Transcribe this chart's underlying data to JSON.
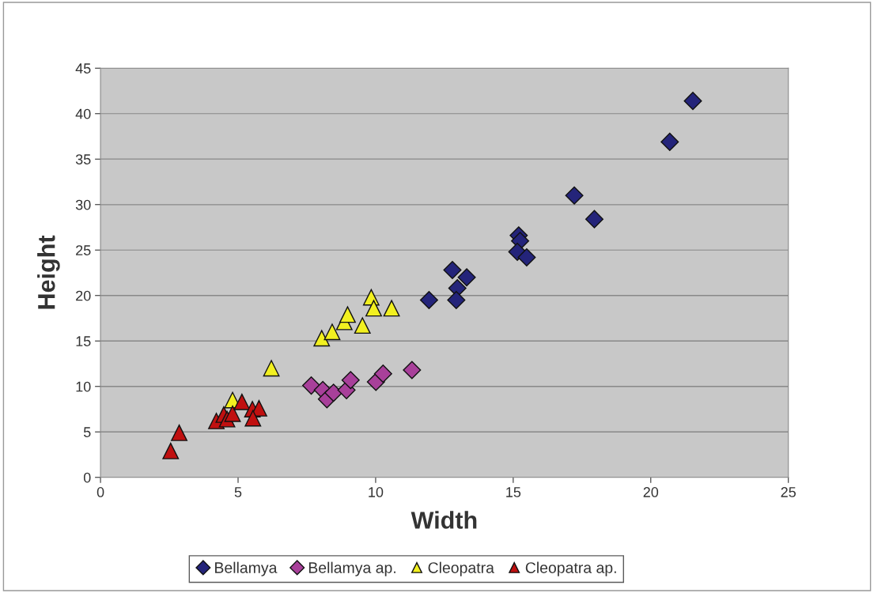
{
  "chart_data": {
    "type": "scatter",
    "xlabel": "Width",
    "ylabel": "Height",
    "xlim": [
      0,
      25
    ],
    "xticks": [
      0,
      5,
      10,
      15,
      20,
      25
    ],
    "ylim": [
      0,
      45
    ],
    "yticks": [
      0,
      5,
      10,
      15,
      20,
      25,
      30,
      35,
      40,
      45
    ],
    "grid": "y",
    "legend": "bottom",
    "series": [
      {
        "name": "Bellamya",
        "color": "#24247a",
        "marker": "diamond",
        "x": [
          11.94,
          12.79,
          13.31,
          12.97,
          12.93,
          15.2,
          15.25,
          15.15,
          15.49,
          21.53,
          20.69,
          17.22,
          17.95
        ],
        "values": [
          19.5,
          22.8,
          22.0,
          20.8,
          19.5,
          26.6,
          26.0,
          24.8,
          24.2,
          41.4,
          36.9,
          31.0,
          28.4
        ]
      },
      {
        "name": "Bellamya ap.",
        "color": "#a8409a",
        "marker": "diamond",
        "x": [
          7.66,
          8.08,
          8.23,
          8.47,
          8.94,
          9.09,
          10.01,
          10.27,
          11.32
        ],
        "values": [
          10.1,
          9.6,
          8.6,
          9.3,
          9.6,
          10.7,
          10.5,
          11.4,
          11.8
        ]
      },
      {
        "name": "Cleopatra",
        "color": "#f2f020",
        "marker": "triangle",
        "x": [
          4.8,
          6.21,
          8.04,
          8.42,
          8.86,
          8.98,
          9.52,
          9.84,
          9.93,
          10.58
        ],
        "values": [
          8.5,
          12.0,
          15.3,
          16.0,
          17.1,
          17.9,
          16.7,
          19.8,
          18.6,
          18.6
        ]
      },
      {
        "name": "Cleopatra ap.",
        "color": "#c01010",
        "marker": "triangle",
        "x": [
          2.55,
          2.86,
          4.21,
          4.48,
          4.6,
          4.8,
          5.14,
          5.52,
          5.76,
          5.54
        ],
        "values": [
          2.9,
          4.9,
          6.2,
          6.9,
          6.4,
          7.0,
          8.3,
          7.5,
          7.6,
          6.5
        ]
      }
    ]
  }
}
